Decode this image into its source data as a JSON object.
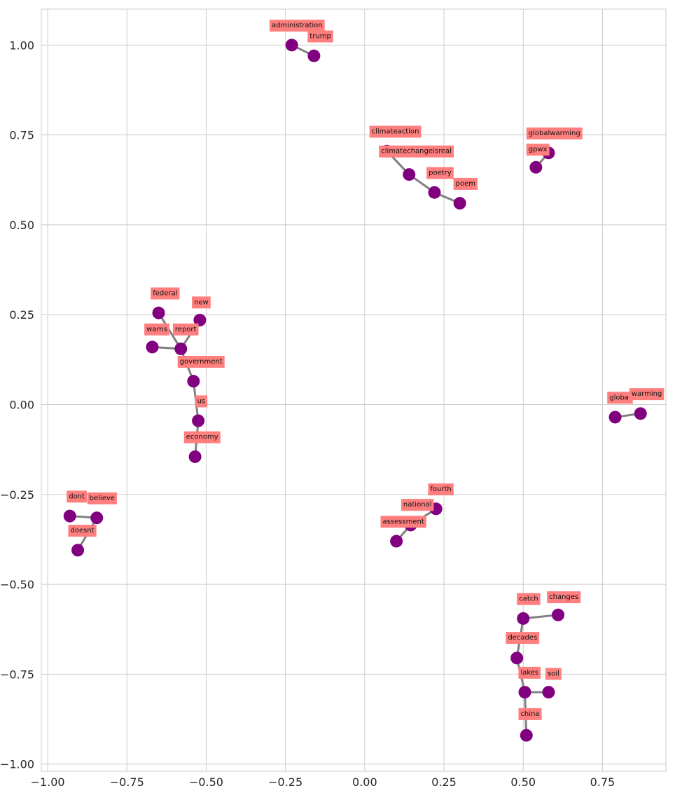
{
  "chart_data": {
    "type": "scatter",
    "title": "",
    "xlabel": "",
    "ylabel": "",
    "xlim": [
      -1.02,
      0.95
    ],
    "ylim": [
      -1.02,
      1.1
    ],
    "grid": true,
    "x_ticks": [
      {
        "value": -1.0,
        "label": "−1.00"
      },
      {
        "value": -0.75,
        "label": "−0.75"
      },
      {
        "value": -0.5,
        "label": "−0.50"
      },
      {
        "value": -0.25,
        "label": "−0.25"
      },
      {
        "value": 0.0,
        "label": "0.00"
      },
      {
        "value": 0.25,
        "label": "0.25"
      },
      {
        "value": 0.5,
        "label": "0.50"
      },
      {
        "value": 0.75,
        "label": "0.75"
      }
    ],
    "y_ticks": [
      {
        "value": 1.0,
        "label": "1.00"
      },
      {
        "value": 0.75,
        "label": "0.75"
      },
      {
        "value": 0.5,
        "label": "0.50"
      },
      {
        "value": 0.25,
        "label": "0.25"
      },
      {
        "value": 0.0,
        "label": "0.00"
      },
      {
        "value": -0.25,
        "label": "−0.25"
      },
      {
        "value": -0.5,
        "label": "−0.50"
      },
      {
        "value": -0.75,
        "label": "−0.75"
      },
      {
        "value": -1.0,
        "label": "−1.00"
      }
    ],
    "colors": {
      "node": "#800080",
      "edge": "#808080",
      "label_box": "#ff7f7f"
    },
    "nodes": [
      {
        "id": "administration",
        "x": -0.23,
        "y": 1.0
      },
      {
        "id": "trump",
        "x": -0.16,
        "y": 0.97
      },
      {
        "id": "climateaction",
        "x": 0.07,
        "y": 0.705
      },
      {
        "id": "climatechangeisreal",
        "x": 0.14,
        "y": 0.64
      },
      {
        "id": "poetry",
        "x": 0.22,
        "y": 0.59
      },
      {
        "id": "poem",
        "x": 0.3,
        "y": 0.56
      },
      {
        "id": "globalwarming",
        "x": 0.58,
        "y": 0.7
      },
      {
        "id": "gpwx",
        "x": 0.54,
        "y": 0.66
      },
      {
        "id": "federal",
        "x": -0.65,
        "y": 0.255
      },
      {
        "id": "new",
        "x": -0.52,
        "y": 0.235
      },
      {
        "id": "warns",
        "x": -0.67,
        "y": 0.16
      },
      {
        "id": "report",
        "x": -0.58,
        "y": 0.155
      },
      {
        "id": "government",
        "x": -0.54,
        "y": 0.065
      },
      {
        "id": "us",
        "x": -0.525,
        "y": -0.045
      },
      {
        "id": "economy",
        "x": -0.535,
        "y": -0.145
      },
      {
        "id": "global",
        "x": 0.79,
        "y": -0.035
      },
      {
        "id": "warming",
        "x": 0.87,
        "y": -0.025
      },
      {
        "id": "dont",
        "x": -0.93,
        "y": -0.31
      },
      {
        "id": "believe",
        "x": -0.845,
        "y": -0.315
      },
      {
        "id": "doesnt",
        "x": -0.905,
        "y": -0.405
      },
      {
        "id": "fourth",
        "x": 0.225,
        "y": -0.29
      },
      {
        "id": "national",
        "x": 0.145,
        "y": -0.335
      },
      {
        "id": "assessment",
        "x": 0.1,
        "y": -0.38
      },
      {
        "id": "catch",
        "x": 0.5,
        "y": -0.595
      },
      {
        "id": "changes",
        "x": 0.61,
        "y": -0.585
      },
      {
        "id": "decades",
        "x": 0.48,
        "y": -0.705
      },
      {
        "id": "lakes",
        "x": 0.505,
        "y": -0.8
      },
      {
        "id": "soil",
        "x": 0.58,
        "y": -0.8
      },
      {
        "id": "china",
        "x": 0.51,
        "y": -0.92
      }
    ],
    "edges": [
      [
        "administration",
        "trump"
      ],
      [
        "climateaction",
        "climatechangeisreal"
      ],
      [
        "climatechangeisreal",
        "poetry"
      ],
      [
        "poetry",
        "poem"
      ],
      [
        "globalwarming",
        "gpwx"
      ],
      [
        "federal",
        "report"
      ],
      [
        "new",
        "report"
      ],
      [
        "warns",
        "report"
      ],
      [
        "report",
        "government"
      ],
      [
        "government",
        "us"
      ],
      [
        "us",
        "economy"
      ],
      [
        "global",
        "warming"
      ],
      [
        "dont",
        "believe"
      ],
      [
        "believe",
        "doesnt"
      ],
      [
        "fourth",
        "national"
      ],
      [
        "national",
        "assessment"
      ],
      [
        "catch",
        "changes"
      ],
      [
        "catch",
        "decades"
      ],
      [
        "decades",
        "lakes"
      ],
      [
        "lakes",
        "soil"
      ],
      [
        "lakes",
        "china"
      ]
    ],
    "labels": [
      {
        "text": "administration",
        "x": -0.3,
        "y": 1.055
      },
      {
        "text": "trump",
        "x": -0.18,
        "y": 1.025
      },
      {
        "text": "climateaction",
        "x": 0.015,
        "y": 0.76
      },
      {
        "text": "climatechangeisreal",
        "x": 0.045,
        "y": 0.705
      },
      {
        "text": "poetry",
        "x": 0.195,
        "y": 0.645
      },
      {
        "text": "poem",
        "x": 0.28,
        "y": 0.615
      },
      {
        "text": "globalwarming",
        "x": 0.51,
        "y": 0.755
      },
      {
        "text": "gpwx",
        "x": 0.51,
        "y": 0.71
      },
      {
        "text": "federal",
        "x": -0.675,
        "y": 0.31
      },
      {
        "text": "new",
        "x": -0.545,
        "y": 0.285
      },
      {
        "text": "warns",
        "x": -0.695,
        "y": 0.21
      },
      {
        "text": "report",
        "x": -0.605,
        "y": 0.21
      },
      {
        "text": "government",
        "x": -0.59,
        "y": 0.12
      },
      {
        "text": "us",
        "x": -0.535,
        "y": 0.01
      },
      {
        "text": "economy",
        "x": -0.57,
        "y": -0.09
      },
      {
        "text": "global",
        "x": 0.765,
        "y": 0.02
      },
      {
        "text": "warming",
        "x": 0.835,
        "y": 0.03
      },
      {
        "text": "dont",
        "x": -0.94,
        "y": -0.255
      },
      {
        "text": "believe",
        "x": -0.875,
        "y": -0.26
      },
      {
        "text": "doesnt",
        "x": -0.935,
        "y": -0.35
      },
      {
        "text": "fourth",
        "x": 0.2,
        "y": -0.235
      },
      {
        "text": "national",
        "x": 0.115,
        "y": -0.278
      },
      {
        "text": "assessment",
        "x": 0.05,
        "y": -0.325
      },
      {
        "text": "catch",
        "x": 0.48,
        "y": -0.54
      },
      {
        "text": "changes",
        "x": 0.575,
        "y": -0.535
      },
      {
        "text": "decades",
        "x": 0.445,
        "y": -0.648
      },
      {
        "text": "lakes",
        "x": 0.485,
        "y": -0.745
      },
      {
        "text": "soil",
        "x": 0.57,
        "y": -0.748
      },
      {
        "text": "china",
        "x": 0.485,
        "y": -0.86
      }
    ]
  }
}
